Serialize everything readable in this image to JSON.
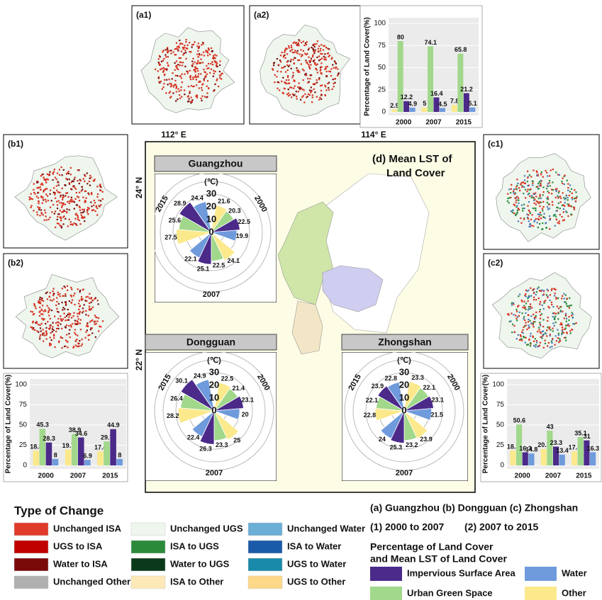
{
  "map_labels": [
    "(a1)",
    "(a2)",
    "(b1)",
    "(b2)",
    "(c1)",
    "(c2)"
  ],
  "central_map": {
    "title_lines": [
      "(d) Mean LST of",
      "Land Cover"
    ],
    "lon_labels": [
      "112° E",
      "114° E"
    ],
    "lat_labels": [
      "24° N",
      "22° N"
    ]
  },
  "chart_data": [
    {
      "type": "bar",
      "ylabel": "Percentage of Land Cover(%)",
      "categories": [
        "2000",
        "2007",
        "2015"
      ],
      "ylim": [
        0,
        100
      ],
      "yticks": [
        0,
        25,
        50,
        75,
        100
      ],
      "series": [
        {
          "color": "#fbe98c",
          "values": [
            2.9,
            5,
            7.8
          ]
        },
        {
          "color": "#a1d88b",
          "values": [
            80,
            74.1,
            65.8
          ]
        },
        {
          "color": "#4b2a8a",
          "values": [
            12.2,
            16.4,
            21.2
          ]
        },
        {
          "color": "#6f9bdc",
          "values": [
            4.9,
            4.5,
            5.1
          ]
        }
      ]
    },
    {
      "type": "bar",
      "ylabel": "Percentage of Land Cover(%)",
      "categories": [
        "2000",
        "2007",
        "2015"
      ],
      "ylim": [
        0,
        100
      ],
      "yticks": [
        0,
        25,
        50,
        75,
        100
      ],
      "series": [
        {
          "color": "#fbe98c",
          "values": [
            18.3,
            19.7,
            17.4
          ]
        },
        {
          "color": "#a1d88b",
          "values": [
            45.3,
            38.9,
            29.7
          ]
        },
        {
          "color": "#4b2a8a",
          "values": [
            28.3,
            34.6,
            44.9
          ]
        },
        {
          "color": "#6f9bdc",
          "values": [
            8,
            6.9,
            8
          ]
        }
      ]
    },
    {
      "type": "bar",
      "ylabel": "Percentage of Land Cover(%)",
      "categories": [
        "2000",
        "2007",
        "2015"
      ],
      "ylim": [
        0,
        100
      ],
      "yticks": [
        0,
        25,
        50,
        75,
        100
      ],
      "series": [
        {
          "color": "#fbe98c",
          "values": [
            18.3,
            20.3,
            17.5
          ]
        },
        {
          "color": "#a1d88b",
          "values": [
            50.6,
            43,
            35.1
          ]
        },
        {
          "color": "#4b2a8a",
          "values": [
            16.3,
            23.3,
            31
          ]
        },
        {
          "color": "#6f9bdc",
          "values": [
            14.8,
            13.4,
            16.3
          ]
        }
      ]
    },
    {
      "type": "polar_bar",
      "title": "Guangzhou",
      "r_label": "(℃)",
      "categories": [
        "2000",
        "2007",
        "2015"
      ],
      "rlim": [
        0,
        40
      ],
      "rticks": [
        0,
        10,
        20,
        30
      ],
      "series": [
        {
          "color": "#fbe98c",
          "values": [
            21.6,
            24.1,
            27.5
          ]
        },
        {
          "color": "#a1d88b",
          "values": [
            20.3,
            22.5,
            25.6
          ]
        },
        {
          "color": "#4b2a8a",
          "values": [
            22.5,
            25.1,
            28.9
          ]
        },
        {
          "color": "#6f9bdc",
          "values": [
            19.9,
            22.1,
            24.4
          ]
        }
      ]
    },
    {
      "type": "polar_bar",
      "title": "Dongguan",
      "r_label": "(℃)",
      "categories": [
        "2000",
        "2007",
        "2015"
      ],
      "rlim": [
        0,
        40
      ],
      "rticks": [
        0,
        10,
        20,
        30
      ],
      "series": [
        {
          "color": "#fbe98c",
          "values": [
            22.5,
            25,
            28.2
          ]
        },
        {
          "color": "#a1d88b",
          "values": [
            21.4,
            23.3,
            26.4
          ]
        },
        {
          "color": "#4b2a8a",
          "values": [
            23.1,
            26.3,
            30.1
          ]
        },
        {
          "color": "#6f9bdc",
          "values": [
            20,
            22.4,
            24.9
          ]
        }
      ]
    },
    {
      "type": "polar_bar",
      "title": "Zhongshan",
      "r_label": "(℃)",
      "categories": [
        "2000",
        "2007",
        "2015"
      ],
      "rlim": [
        0,
        40
      ],
      "rticks": [
        0,
        10,
        20,
        30
      ],
      "series": [
        {
          "color": "#fbe98c",
          "values": [
            23.3,
            23.9,
            22.8
          ]
        },
        {
          "color": "#a1d88b",
          "values": [
            22.1,
            23.2,
            22.1
          ]
        },
        {
          "color": "#4b2a8a",
          "values": [
            23.1,
            25.3,
            23.9
          ]
        },
        {
          "color": "#6f9bdc",
          "values": [
            21.5,
            24,
            22.8
          ]
        }
      ]
    }
  ],
  "change_legend": {
    "title": "Type of Change",
    "items": [
      {
        "name": "Unchanged ISA",
        "color": "#e03a2a"
      },
      {
        "name": "UGS to ISA",
        "color": "#c00000"
      },
      {
        "name": "Water to ISA",
        "color": "#7a0a0a"
      },
      {
        "name": "Unchanged Other",
        "color": "#b0b0b0"
      },
      {
        "name": "Unchanged UGS",
        "color": "#eef6ee"
      },
      {
        "name": "ISA to UGS",
        "color": "#2a8a3a"
      },
      {
        "name": "Water to UGS",
        "color": "#0a3a1a"
      },
      {
        "name": "ISA to Other",
        "color": "#fde8b8"
      },
      {
        "name": "Unchanged Water",
        "color": "#6baed6"
      },
      {
        "name": "ISA to Water",
        "color": "#1a5aa8"
      },
      {
        "name": "UGS to Water",
        "color": "#1a8aaa"
      },
      {
        "name": "UGS to Other",
        "color": "#fdd888"
      }
    ]
  },
  "captions": [
    "(a) Guangzhou (b) Dongguan (c) Zhongshan",
    "(1) 2000 to 2007",
    "(2) 2007 to 2015"
  ],
  "cover_legend": {
    "title_lines": [
      "Percentage of Land Cover",
      "and Mean LST of Land Cover"
    ],
    "items": [
      {
        "name": "Impervious Surface Area",
        "color": "#4b2a8a"
      },
      {
        "name": "Water",
        "color": "#6f9bdc"
      },
      {
        "name": "Urban Green Space",
        "color": "#a1d88b"
      },
      {
        "name": "Other",
        "color": "#fbe98c"
      }
    ]
  }
}
